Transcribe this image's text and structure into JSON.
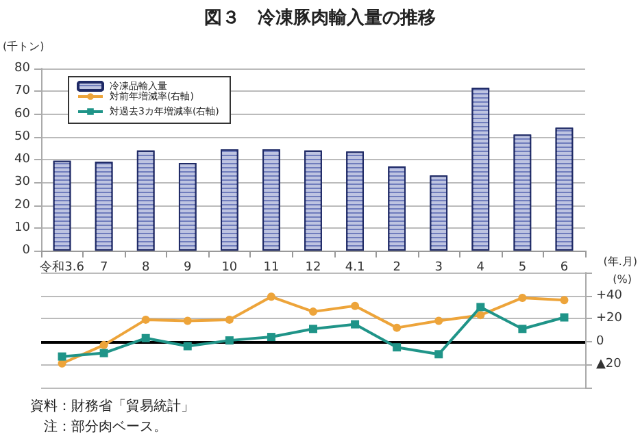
{
  "chart_data": [
    {
      "type": "bar",
      "title": "図３　冷凍豚肉輸入量の推移",
      "ylabel": "(千トン)",
      "xlabel": "(年.月)",
      "categories": [
        "令和3.6",
        "7",
        "8",
        "9",
        "10",
        "11",
        "12",
        "4.1",
        "2",
        "3",
        "4",
        "5",
        "6"
      ],
      "series": [
        {
          "name": "冷凍品輸入量",
          "color": "#6f7cbc",
          "values": [
            39.5,
            39,
            44,
            38.5,
            44.5,
            44.5,
            44,
            43.5,
            37,
            33,
            71.5,
            51,
            54
          ]
        }
      ],
      "ylim": [
        0,
        80
      ],
      "yticks": [
        0,
        10,
        20,
        30,
        40,
        50,
        60,
        70,
        80
      ],
      "grid": "y",
      "legend": "top left",
      "annotations": [
        "資料：財務省「貿易統計」",
        "注：部分肉ベース。"
      ]
    },
    {
      "type": "line",
      "ylabel": "(%)",
      "categories": [
        null,
        null,
        null,
        null,
        null,
        null,
        null,
        null,
        null,
        null,
        null,
        null,
        null
      ],
      "series": [
        {
          "name": "対前年増減率(右軸)",
          "marker": "circle",
          "color": "#eda43a",
          "values": [
            -19,
            -3,
            19,
            18,
            19,
            39,
            26,
            31,
            12,
            18,
            23,
            38,
            36
          ]
        },
        {
          "name": "対過去3カ年増減率(右軸)",
          "marker": "square",
          "color": "#1f9488",
          "values": [
            -13,
            -10,
            3,
            -4,
            1,
            4,
            11,
            15,
            -5,
            -11,
            30,
            11,
            21
          ]
        }
      ],
      "ylim": [
        -40,
        60
      ],
      "yticks": [
        {
          "value": -40,
          "label": null
        },
        {
          "value": -20,
          "label": "▲20"
        },
        0,
        {
          "value": 20,
          "label": "+20"
        },
        {
          "value": 40,
          "label": "+40"
        },
        {
          "value": 60,
          "label": null
        }
      ],
      "ref_lines": [
        {
          "axis": "y",
          "value": 0,
          "color": "#000000"
        }
      ],
      "grid": "y",
      "legend": "top left",
      "tick_labels": "y"
    }
  ]
}
